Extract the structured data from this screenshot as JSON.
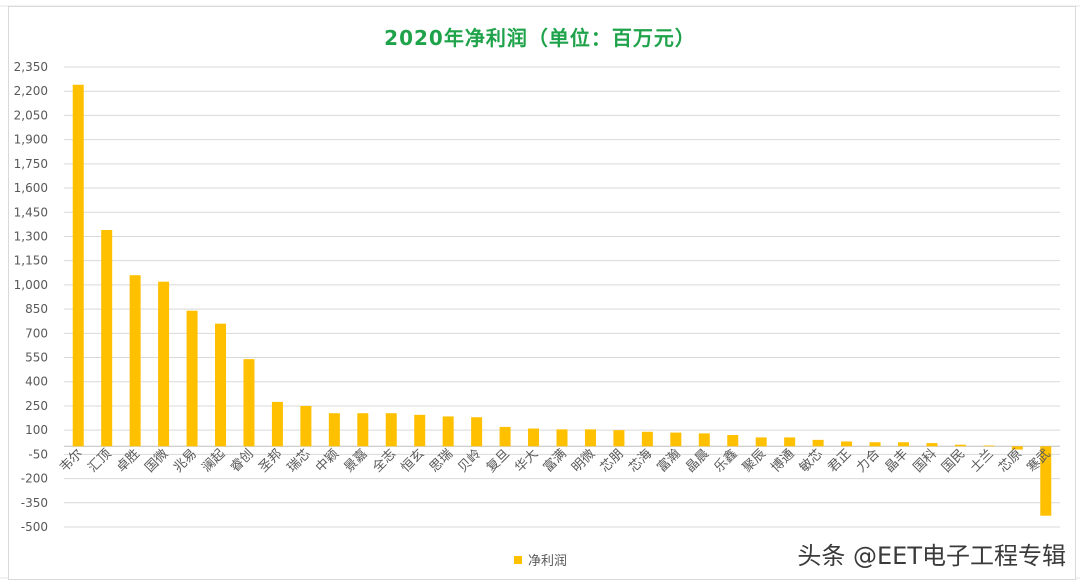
{
  "chart_data": {
    "type": "bar",
    "title": "2020年净利润（单位：百万元）",
    "xlabel": "",
    "ylabel": "",
    "ylim": [
      -500,
      2350
    ],
    "yticks": [
      2350,
      2200,
      2050,
      1900,
      1750,
      1600,
      1450,
      1300,
      1150,
      1000,
      850,
      700,
      550,
      400,
      250,
      100,
      -50,
      -200,
      -350,
      -500
    ],
    "ytick_labels": [
      "2,350",
      "2,200",
      "2,050",
      "1,900",
      "1,750",
      "1,600",
      "1,450",
      "1,300",
      "1,150",
      "1,000",
      "850",
      "700",
      "550",
      "400",
      "250",
      "100",
      "-50",
      "-200",
      "-350",
      "-500"
    ],
    "grid": true,
    "legend_position": "bottom",
    "color": "#ffc000",
    "categories": [
      "韦尔",
      "汇顶",
      "卓胜",
      "国微",
      "兆易",
      "澜起",
      "睿创",
      "圣邦",
      "瑞芯",
      "中颖",
      "景嘉",
      "全志",
      "恒玄",
      "思瑞",
      "贝岭",
      "复旦",
      "华大",
      "富满",
      "明微",
      "芯朋",
      "芯海",
      "富瀚",
      "晶晨",
      "乐鑫",
      "聚辰",
      "博通",
      "敏芯",
      "君正",
      "力合",
      "晶丰",
      "国科",
      "国民",
      "士兰",
      "芯原",
      "寒武"
    ],
    "series": [
      {
        "name": "净利润",
        "values": [
          2240,
          1340,
          1060,
          1020,
          840,
          760,
          540,
          275,
          250,
          205,
          205,
          205,
          195,
          185,
          180,
          120,
          110,
          105,
          105,
          100,
          90,
          85,
          80,
          70,
          55,
          55,
          40,
          30,
          25,
          25,
          20,
          10,
          5,
          -20,
          -430
        ]
      }
    ]
  },
  "watermark": "头条 @EET电子工程专辑"
}
